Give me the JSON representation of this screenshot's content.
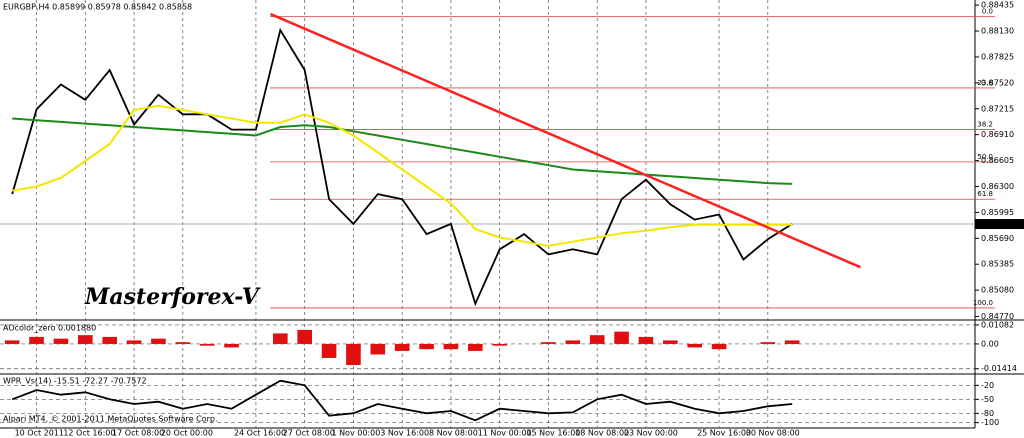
{
  "chart_data": [
    {
      "type": "line",
      "title": "EURGBP,H4 0.85899 0.85978 0.85842 0.85858",
      "annotation": "Masterforex-V",
      "footer": "Alpari MT4, © 2001-2011 MetaQuotes Software Corp.",
      "categories": [
        null,
        "10 Oct 2011",
        null,
        "12 Oct 16:00",
        null,
        "17 Oct 08:00",
        null,
        "20 Oct 00:00",
        null,
        null,
        "24 Oct 16:00",
        null,
        "27 Oct 08:00",
        null,
        "1 Nov 00:00",
        null,
        "3 Nov 16:00",
        null,
        "8 Nov 08:00",
        null,
        "11 Nov 00:00",
        null,
        "15 Nov 16:00",
        null,
        "18 Nov 08:00",
        null,
        "23 Nov 00:00",
        null,
        null,
        "25 Nov 16:00",
        null,
        "30 Nov 08:00",
        null,
        null,
        null,
        null,
        null,
        null,
        null,
        null
      ],
      "series": [
        {
          "name": "close",
          "color": "#000000",
          "values": [
            0.8621,
            0.8721,
            0.875,
            0.8732,
            0.8767,
            0.8703,
            0.8738,
            0.8715,
            0.8715,
            0.8697,
            0.8697,
            0.8814,
            0.8767,
            0.8615,
            0.8586,
            0.8621,
            0.8615,
            0.8574,
            0.8586,
            0.8492,
            0.8556,
            0.8574,
            0.855,
            0.8556,
            0.855,
            0.8615,
            0.8638,
            0.8609,
            0.8591,
            0.8597,
            0.8544,
            0.8568,
            0.8586,
            null,
            null,
            null,
            null,
            null,
            null,
            null
          ]
        },
        {
          "name": "ma-slow",
          "color": "#1a8a1a",
          "values": [
            0.871,
            0.8708,
            0.8706,
            0.8704,
            0.8702,
            0.87,
            0.8698,
            0.8696,
            0.8694,
            0.8692,
            0.869,
            0.87,
            0.8702,
            0.87,
            0.8695,
            0.869,
            0.8685,
            0.868,
            0.8675,
            0.867,
            0.8665,
            0.866,
            0.8655,
            0.865,
            0.8648,
            0.8646,
            0.8644,
            0.8642,
            0.864,
            0.8638,
            0.8636,
            0.8634,
            0.8633,
            null,
            null,
            null,
            null,
            null,
            null,
            null
          ]
        },
        {
          "name": "ma-fast",
          "color": "#f5e600",
          "values": [
            0.8625,
            0.863,
            0.864,
            0.866,
            0.868,
            0.872,
            0.8725,
            0.872,
            0.8715,
            0.871,
            0.8705,
            0.8705,
            0.8715,
            0.8705,
            0.869,
            0.867,
            0.865,
            0.863,
            0.861,
            0.858,
            0.857,
            0.8565,
            0.856,
            0.8565,
            0.857,
            0.8575,
            0.8578,
            0.8582,
            0.8585,
            0.8585,
            0.8585,
            0.8585,
            0.8585,
            null,
            null,
            null,
            null,
            null,
            null,
            null
          ]
        }
      ],
      "ylim": [
        0.8474,
        0.8846
      ],
      "yticks": [
        0.88435,
        {
          "value": 0.8813,
          "label": "0.88130"
        },
        0.87825,
        {
          "value": 0.8752,
          "label": "0.87520"
        },
        0.87215,
        {
          "value": 0.8691,
          "label": "0.86910"
        },
        0.86605,
        {
          "value": 0.863,
          "label": "0.86300"
        },
        0.85995,
        {
          "value": 0.8569,
          "label": "0.85690"
        },
        0.85385,
        {
          "value": 0.8508,
          "label": "0.85080"
        },
        {
          "value": 0.8477,
          "label": "0.84770"
        }
      ],
      "fib_levels": [
        {
          "value": 0.883,
          "label": "0.0"
        },
        {
          "value": 0.8746,
          "label": "23.6"
        },
        {
          "value": 0.8697,
          "label": "38.2"
        },
        {
          "value": 0.8659,
          "label": "50.0"
        },
        {
          "value": 0.8615,
          "label": "61.8"
        },
        {
          "value": 0.8487,
          "label": "100.0"
        }
      ],
      "fib_color": "#e04040",
      "trendline": {
        "x": [
          10.6,
          34.8
        ],
        "y": [
          0.8833,
          0.8535
        ],
        "color": "#ff2020"
      },
      "current_price": {
        "value": 0.85858,
        "label": "0.85858"
      }
    },
    {
      "type": "bar",
      "title": "AOcolor_zero 0.001880",
      "color": "#e01010",
      "values": [
        0.002,
        0.004,
        0.003,
        0.005,
        0.004,
        0.002,
        0.003,
        0.001,
        -0.001,
        -0.002,
        0.0,
        0.006,
        0.008,
        -0.008,
        -0.012,
        -0.006,
        -0.004,
        -0.003,
        -0.003,
        -0.004,
        -0.001,
        0.0,
        0.001,
        0.002,
        0.005,
        0.007,
        0.004,
        0.002,
        -0.002,
        -0.003,
        0.0,
        0.001,
        0.002,
        null,
        null,
        null,
        null,
        null,
        null,
        null
      ],
      "ylim": [
        -0.016,
        0.0125
      ],
      "yticks": [
        0.01082,
        {
          "value": 0,
          "label": "0.00"
        },
        -0.01414
      ]
    },
    {
      "type": "line",
      "title": "WPR_Vs(14) -15.51 -72.27 -70.7572",
      "series": [
        {
          "name": "wpr",
          "color": "#000000",
          "values": [
            -50,
            -30,
            -40,
            -35,
            -50,
            -60,
            -55,
            -70,
            -60,
            -70,
            -40,
            -10,
            -20,
            -85,
            -80,
            -60,
            -70,
            -80,
            -75,
            -95,
            -70,
            -75,
            -80,
            -78,
            -50,
            -40,
            -60,
            -55,
            -70,
            -80,
            -75,
            -65,
            -60,
            null,
            null,
            null,
            null,
            null,
            null,
            null
          ]
        }
      ],
      "ylim": [
        -105,
        0
      ],
      "yticks": [
        -20,
        -50,
        -80,
        -100
      ]
    }
  ]
}
